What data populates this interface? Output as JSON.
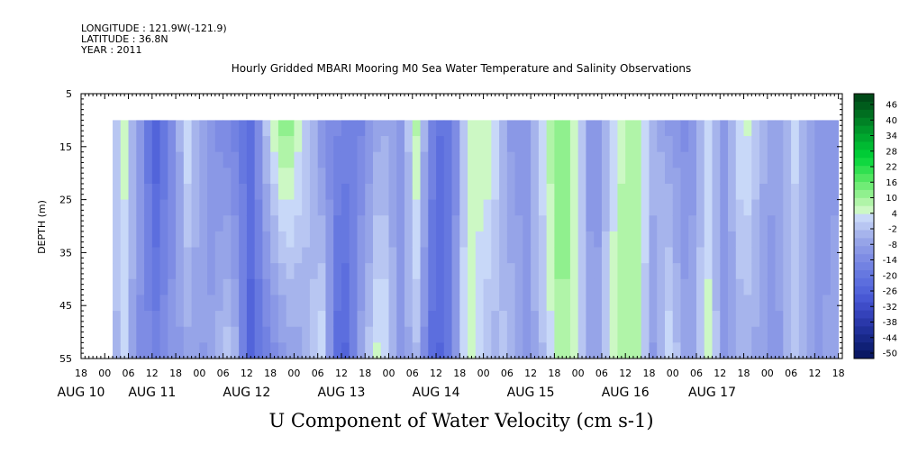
{
  "header": {
    "longitude": "LONGITUDE : 121.9W(-121.9)",
    "latitude": "LATITUDE : 36.8N",
    "year": "YEAR : 2011"
  },
  "chart_data": {
    "type": "heatmap",
    "title": "Hourly Gridded MBARI Mooring M0 Sea Water Temperature and Salinity Observations",
    "subtitle": "U Component of Water Velocity (cm s-1)",
    "ylabel": "DEPTH (m)",
    "xlabel": "",
    "x_range_hours": [
      -6,
      187
    ],
    "data_start_hour": 2,
    "data_end_hour": 186,
    "y_range": [
      5,
      55
    ],
    "y_reversed": true,
    "y_ticks": [
      5,
      15,
      25,
      35,
      45,
      55
    ],
    "x_hour_ticks": [
      {
        "hour": -6,
        "label": "18"
      },
      {
        "hour": 0,
        "label": "00"
      },
      {
        "hour": 6,
        "label": "06"
      },
      {
        "hour": 12,
        "label": "12"
      },
      {
        "hour": 18,
        "label": "18"
      },
      {
        "hour": 24,
        "label": "00"
      },
      {
        "hour": 30,
        "label": "06"
      },
      {
        "hour": 36,
        "label": "12"
      },
      {
        "hour": 42,
        "label": "18"
      },
      {
        "hour": 48,
        "label": "00"
      },
      {
        "hour": 54,
        "label": "06"
      },
      {
        "hour": 60,
        "label": "12"
      },
      {
        "hour": 66,
        "label": "18"
      },
      {
        "hour": 72,
        "label": "00"
      },
      {
        "hour": 78,
        "label": "06"
      },
      {
        "hour": 84,
        "label": "12"
      },
      {
        "hour": 90,
        "label": "18"
      },
      {
        "hour": 96,
        "label": "00"
      },
      {
        "hour": 102,
        "label": "06"
      },
      {
        "hour": 108,
        "label": "12"
      },
      {
        "hour": 114,
        "label": "18"
      },
      {
        "hour": 120,
        "label": "00"
      },
      {
        "hour": 126,
        "label": "06"
      },
      {
        "hour": 132,
        "label": "12"
      },
      {
        "hour": 138,
        "label": "18"
      },
      {
        "hour": 144,
        "label": "00"
      },
      {
        "hour": 150,
        "label": "06"
      },
      {
        "hour": 156,
        "label": "12"
      },
      {
        "hour": 162,
        "label": "18"
      },
      {
        "hour": 168,
        "label": "00"
      },
      {
        "hour": 174,
        "label": "06"
      },
      {
        "hour": 180,
        "label": "12"
      },
      {
        "hour": 186,
        "label": "18"
      }
    ],
    "x_date_labels": [
      {
        "hour": -6,
        "label": "AUG 10"
      },
      {
        "hour": 12,
        "label": "AUG 11"
      },
      {
        "hour": 36,
        "label": "AUG 12"
      },
      {
        "hour": 60,
        "label": "AUG 13"
      },
      {
        "hour": 84,
        "label": "AUG 14"
      },
      {
        "hour": 108,
        "label": "AUG 15"
      },
      {
        "hour": 132,
        "label": "AUG 16"
      },
      {
        "hour": 154,
        "label": "AUG 17"
      }
    ],
    "colorbar": {
      "labels": [
        "46",
        "40",
        "34",
        "28",
        "22",
        "16",
        "10",
        "4",
        "-2",
        "-8",
        "-14",
        "-20",
        "-26",
        "-32",
        "-38",
        "-44",
        "-50"
      ],
      "levels_step": 3,
      "min": -50,
      "max": 50,
      "colors_high_to_low": [
        "#004a18",
        "#005c1c",
        "#006e20",
        "#008225",
        "#00962a",
        "#00a82e",
        "#00ba32",
        "#00cc36",
        "#10d840",
        "#30e050",
        "#50e660",
        "#70ec76",
        "#90f08e",
        "#b0f4a8",
        "#ccf8c4",
        "#c8d8f8",
        "#b8c6f2",
        "#a6b4ec",
        "#96a4e8",
        "#8a98e6",
        "#7e8ce4",
        "#7282e2",
        "#6678e0",
        "#5c6ede",
        "#5264da",
        "#4858d4",
        "#3e4cc8",
        "#3442ba",
        "#2a38aa",
        "#20309a",
        "#182888",
        "#102076",
        "#0a1864"
      ]
    },
    "u_profile": [
      {
        "hour": 2,
        "top": -2,
        "bottom": -4
      },
      {
        "hour": 5,
        "top": 6,
        "bottom": 2
      },
      {
        "hour": 8,
        "top": -6,
        "bottom": -10
      },
      {
        "hour": 13,
        "top": -26,
        "bottom": -14
      },
      {
        "hour": 17,
        "top": -12,
        "bottom": -10
      },
      {
        "hour": 21,
        "top": 4,
        "bottom": -6
      },
      {
        "hour": 26,
        "top": -10,
        "bottom": -8
      },
      {
        "hour": 32,
        "top": -14,
        "bottom": 2
      },
      {
        "hour": 37,
        "top": -20,
        "bottom": -24
      },
      {
        "hour": 42,
        "top": 4,
        "bottom": -14
      },
      {
        "hour": 46,
        "top": 14,
        "bottom": -8
      },
      {
        "hour": 50,
        "top": 4,
        "bottom": -6
      },
      {
        "hour": 55,
        "top": -10,
        "bottom": 4
      },
      {
        "hour": 60,
        "top": -14,
        "bottom": -28
      },
      {
        "hour": 65,
        "top": -14,
        "bottom": -6
      },
      {
        "hour": 70,
        "top": -4,
        "bottom": 8
      },
      {
        "hour": 75,
        "top": -10,
        "bottom": -8
      },
      {
        "hour": 79,
        "top": 8,
        "bottom": -2
      },
      {
        "hour": 84,
        "top": -20,
        "bottom": -26
      },
      {
        "hour": 88,
        "top": -18,
        "bottom": -14
      },
      {
        "hour": 92,
        "top": 4,
        "bottom": 10
      },
      {
        "hour": 98,
        "top": 8,
        "bottom": -4
      },
      {
        "hour": 102,
        "top": -8,
        "bottom": 0
      },
      {
        "hour": 107,
        "top": -10,
        "bottom": -8
      },
      {
        "hour": 111,
        "top": 4,
        "bottom": -2
      },
      {
        "hour": 116,
        "top": 16,
        "bottom": 12
      },
      {
        "hour": 120,
        "top": 4,
        "bottom": 2
      },
      {
        "hour": 124,
        "top": -14,
        "bottom": -8
      },
      {
        "hour": 130,
        "top": 6,
        "bottom": 10
      },
      {
        "hour": 135,
        "top": 10,
        "bottom": 8
      },
      {
        "hour": 139,
        "top": -2,
        "bottom": -8
      },
      {
        "hour": 143,
        "top": -8,
        "bottom": 4
      },
      {
        "hour": 148,
        "top": -12,
        "bottom": -8
      },
      {
        "hour": 153,
        "top": 2,
        "bottom": 6
      },
      {
        "hour": 157,
        "top": -10,
        "bottom": -8
      },
      {
        "hour": 162,
        "top": 8,
        "bottom": -4
      },
      {
        "hour": 166,
        "top": -2,
        "bottom": -6
      },
      {
        "hour": 170,
        "top": -8,
        "bottom": -10
      },
      {
        "hour": 175,
        "top": 2,
        "bottom": 0
      },
      {
        "hour": 180,
        "top": -10,
        "bottom": -8
      },
      {
        "hour": 186,
        "top": -8,
        "bottom": -6
      }
    ]
  }
}
